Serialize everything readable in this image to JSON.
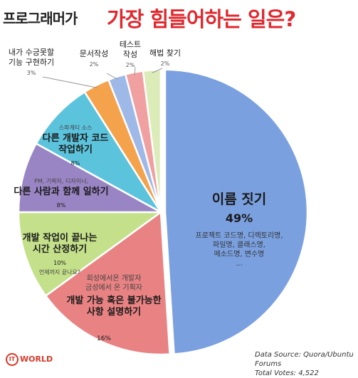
{
  "header": {
    "title_part1": "프로그래머가",
    "title_part2": "가장 힘들어하는 일은?"
  },
  "footer": {
    "logo": "WORLD",
    "logo_mark": "IT",
    "source_line1": "Data Source: Quora/Ubuntu Forums",
    "source_line2": "Total Votes: 4,522"
  },
  "chart_data": {
    "type": "pie",
    "title": "프로그래머가 가장 힘들어하는 일은?",
    "total_votes": "4,522",
    "slices": [
      {
        "label": "이름 짓기",
        "value": 49,
        "value_label": "49%",
        "details": [
          "프로젝트 코드명, 디렉토리명,",
          "파일명, 클래스명,",
          "메소드명, 변수명",
          "..."
        ],
        "color": "#7aa0e0"
      },
      {
        "label": "개발 가능 혹은 불가능한 사항 설명하기",
        "label_lines": [
          "개발 가능 혹은 불가능한",
          "사항 설명하기"
        ],
        "value": 16,
        "value_label": "16%",
        "details": [
          "회성에서온 개발자",
          "금성에서 온 기획자"
        ],
        "color": "#e98283"
      },
      {
        "label": "개발 작업이 끝나는 시간 산정하기",
        "label_lines": [
          "개발 작업이 끝나는",
          "시간 산정하기"
        ],
        "value": 10,
        "value_label": "10%",
        "details": [
          "언제까지 끝나요?"
        ],
        "color": "#c4e08a"
      },
      {
        "label": "다른 사람과 함께 일하기",
        "label_lines": [
          "다른 사람과 함께 일하기"
        ],
        "value": 8,
        "value_label": "8%",
        "details": [
          "PM, 기획자, 디자이너,"
        ],
        "color": "#9a85c4"
      },
      {
        "label": "다른 개발자 코드 작업하기",
        "label_lines": [
          "다른 개발자 코드",
          "작업하기"
        ],
        "value": 8,
        "value_label": "8%",
        "details": [
          "스파게티 소스"
        ],
        "color": "#5cc3dc"
      },
      {
        "label": "내가 수긍못할 기능 구현하기",
        "label_lines": [
          "내가 수긍못할",
          "기능 구현하기"
        ],
        "value": 3,
        "value_label": "3%",
        "details": [],
        "color": "#f5a24c"
      },
      {
        "label": "문서작성",
        "label_lines": [
          "문서작성"
        ],
        "value": 2,
        "value_label": "2%",
        "details": [],
        "color": "#9eb8e8"
      },
      {
        "label": "테스트 작성",
        "label_lines": [
          "테스트",
          "작성"
        ],
        "value": 2,
        "value_label": "2%",
        "details": [],
        "color": "#f0a0a0"
      },
      {
        "label": "해법 찾기",
        "label_lines": [
          "해법 찾기"
        ],
        "value": 2,
        "value_label": "2%",
        "details": [],
        "color": "#dcecb8"
      }
    ]
  }
}
